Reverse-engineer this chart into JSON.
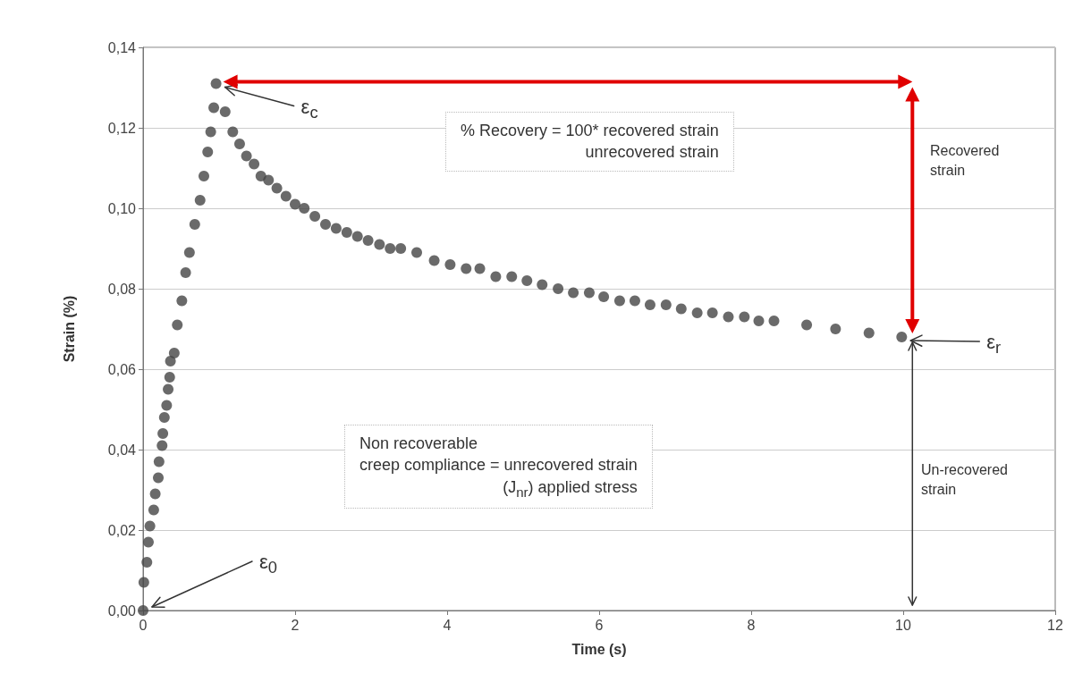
{
  "chart_data": {
    "type": "scatter",
    "xlabel": "Time (s)",
    "ylabel": "Strain (%)",
    "x": [
      0,
      0.01,
      0.05,
      0.07,
      0.09,
      0.14,
      0.16,
      0.2,
      0.21,
      0.25,
      0.26,
      0.28,
      0.31,
      0.33,
      0.35,
      0.36,
      0.41,
      0.45,
      0.51,
      0.56,
      0.61,
      0.68,
      0.75,
      0.8,
      0.85,
      0.89,
      0.93,
      0.96,
      1.08,
      1.18,
      1.27,
      1.36,
      1.46,
      1.55,
      1.65,
      1.76,
      1.88,
      2.0,
      2.12,
      2.26,
      2.4,
      2.54,
      2.68,
      2.82,
      2.96,
      3.11,
      3.25,
      3.39,
      3.6,
      3.83,
      4.04,
      4.25,
      4.43,
      4.64,
      4.85,
      5.05,
      5.25,
      5.46,
      5.66,
      5.87,
      6.06,
      6.27,
      6.47,
      6.67,
      6.88,
      7.08,
      7.29,
      7.49,
      7.7,
      7.91,
      8.1,
      8.3,
      8.73,
      9.11,
      9.55,
      9.98
    ],
    "series": [
      {
        "color": "#454545",
        "values": [
          0,
          0.007,
          0.012,
          0.017,
          0.021,
          0.025,
          0.029,
          0.033,
          0.037,
          0.041,
          0.044,
          0.048,
          0.051,
          0.055,
          0.058,
          0.062,
          0.064,
          0.071,
          0.077,
          0.084,
          0.089,
          0.096,
          0.102,
          0.108,
          0.114,
          0.119,
          0.125,
          0.131,
          0.124,
          0.119,
          0.116,
          0.113,
          0.111,
          0.108,
          0.107,
          0.105,
          0.103,
          0.101,
          0.1,
          0.098,
          0.096,
          0.095,
          0.094,
          0.093,
          0.092,
          0.091,
          0.09,
          0.09,
          0.089,
          0.087,
          0.086,
          0.085,
          0.085,
          0.083,
          0.083,
          0.082,
          0.081,
          0.08,
          0.079,
          0.079,
          0.078,
          0.077,
          0.077,
          0.076,
          0.076,
          0.075,
          0.074,
          0.074,
          0.073,
          0.073,
          0.072,
          0.072,
          0.071,
          0.07,
          0.069,
          0.068
        ]
      }
    ],
    "xlim": [
      0,
      12
    ],
    "xticks": [
      0,
      2,
      4,
      6,
      8,
      10,
      12
    ],
    "ylim": [
      0,
      0.14
    ],
    "yticks": [
      {
        "value": 0,
        "label": "0,00"
      },
      {
        "value": 0.02,
        "label": "0,02"
      },
      {
        "value": 0.04,
        "label": "0,04"
      },
      {
        "value": 0.06,
        "label": "0,06"
      },
      {
        "value": 0.08,
        "label": "0,08"
      },
      {
        "value": 0.1,
        "label": "0,10"
      },
      {
        "value": 0.12,
        "label": "0,12"
      },
      {
        "value": 0.14,
        "label": "0,14"
      }
    ],
    "grid": "y",
    "marker": "circle",
    "annotations": [
      "ε$_{c}$",
      "ε$_{0}$",
      "ε$_{r}$",
      "% Recovery = 100* recovered strain\nunrecovered strain",
      "Non recoverable\ncreep compliance = unrecovered strain\n(J$_{nr}$) applied stress",
      "Recovered\nstrain",
      "Un-recovered\nstrain"
    ]
  }
}
